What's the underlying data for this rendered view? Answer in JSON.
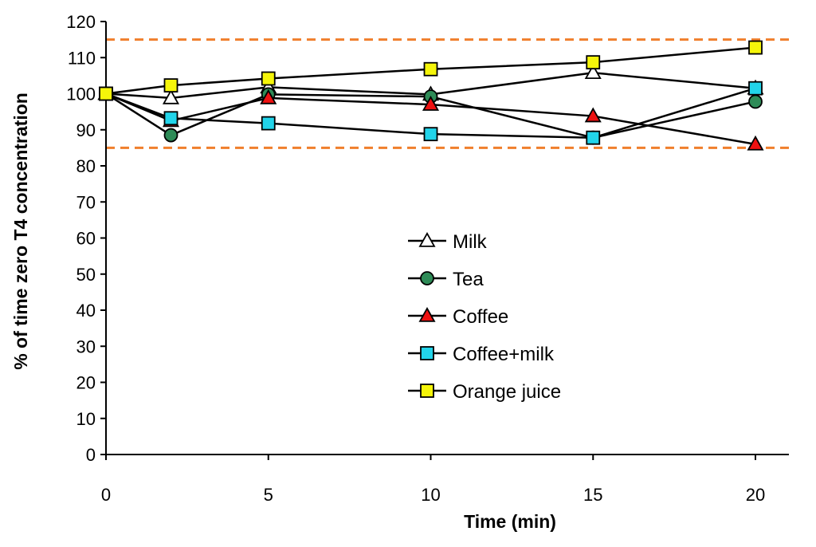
{
  "chart_data": {
    "type": "line",
    "title": "",
    "xlabel": "Time (min)",
    "ylabel": "% of time zero T4 concentration",
    "xlim": [
      0,
      21
    ],
    "ylim": [
      0,
      120
    ],
    "x_ticks": [
      0,
      5,
      10,
      15,
      20
    ],
    "y_ticks": [
      0,
      10,
      20,
      30,
      40,
      50,
      60,
      70,
      80,
      90,
      100,
      110,
      120
    ],
    "grid": false,
    "legend_position": "center",
    "reference_lines": [
      {
        "y": 115,
        "style": "dashed",
        "color": "#f07f2c"
      },
      {
        "y": 85,
        "style": "dashed",
        "color": "#f07f2c"
      }
    ],
    "series": [
      {
        "name": "Milk",
        "marker": "triangle",
        "color": "#ffffff",
        "x": [
          0,
          2,
          5,
          10,
          15,
          20
        ],
        "y": [
          100,
          98.8,
          101.8,
          99.8,
          105.8,
          101.5
        ]
      },
      {
        "name": "Tea",
        "marker": "circle",
        "color": "#2e8b57",
        "x": [
          0,
          2,
          5,
          10,
          15,
          20
        ],
        "y": [
          100,
          88.5,
          99.8,
          99.2,
          87.8,
          97.8
        ]
      },
      {
        "name": "Coffee",
        "marker": "triangle",
        "color": "#ee1111",
        "x": [
          0,
          2,
          5,
          10,
          15,
          20
        ],
        "y": [
          100,
          92.5,
          98.8,
          97.0,
          93.8,
          86.0
        ]
      },
      {
        "name": "Coffee+milk",
        "marker": "square",
        "color": "#22d4ea",
        "x": [
          0,
          2,
          5,
          10,
          15,
          20
        ],
        "y": [
          100,
          93.2,
          91.8,
          88.8,
          87.8,
          101.5
        ]
      },
      {
        "name": "Orange juice",
        "marker": "square",
        "color": "#f5f50a",
        "x": [
          0,
          2,
          5,
          10,
          15,
          20
        ],
        "y": [
          100,
          102.3,
          104.2,
          106.8,
          108.7,
          112.8
        ]
      }
    ]
  }
}
